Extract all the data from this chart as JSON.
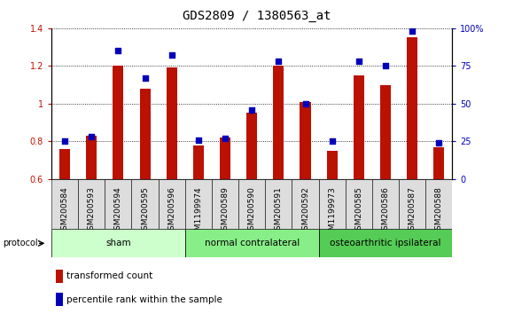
{
  "title": "GDS2809 / 1380563_at",
  "samples": [
    "GSM200584",
    "GSM200593",
    "GSM200594",
    "GSM200595",
    "GSM200596",
    "GSM1199974",
    "GSM200589",
    "GSM200590",
    "GSM200591",
    "GSM200592",
    "GSM1199973",
    "GSM200585",
    "GSM200586",
    "GSM200587",
    "GSM200588"
  ],
  "transformed_count": [
    0.76,
    0.83,
    1.2,
    1.08,
    1.19,
    0.78,
    0.82,
    0.95,
    1.2,
    1.01,
    0.75,
    1.15,
    1.1,
    1.35,
    0.77
  ],
  "percentile_rank": [
    25,
    28,
    85,
    67,
    82,
    26,
    27,
    46,
    78,
    50,
    25,
    78,
    75,
    98,
    24
  ],
  "groups": [
    {
      "label": "sham",
      "start": 0,
      "end": 5
    },
    {
      "label": "normal contralateral",
      "start": 5,
      "end": 10
    },
    {
      "label": "osteoarthritic ipsilateral",
      "start": 10,
      "end": 15
    }
  ],
  "group_colors": [
    "#ccffcc",
    "#88ee88",
    "#55cc55"
  ],
  "ylim_left": [
    0.6,
    1.4
  ],
  "ylim_right": [
    0,
    100
  ],
  "yticks_left": [
    0.6,
    0.8,
    1.0,
    1.2,
    1.4
  ],
  "yticks_right": [
    0,
    25,
    50,
    75,
    100
  ],
  "ytick_labels_right": [
    "0",
    "25",
    "50",
    "75",
    "100%"
  ],
  "bar_color": "#bb1100",
  "dot_color": "#0000bb",
  "plot_bg": "#ffffff",
  "xtick_bg": "#dddddd",
  "title_fontsize": 10,
  "tick_fontsize": 7,
  "bar_width": 0.4
}
